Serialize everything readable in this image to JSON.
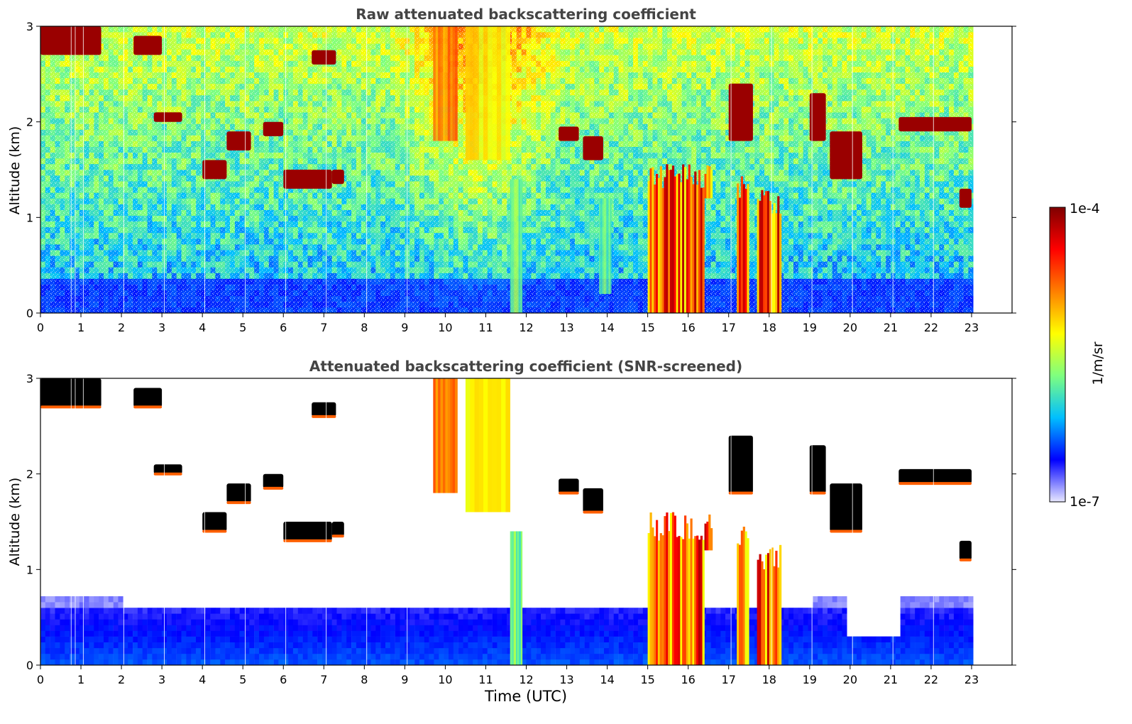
{
  "chart_data": [
    {
      "type": "heatmap",
      "title": "Raw attenuated backscattering coefficient",
      "xlabel": "",
      "ylabel": "Altitude (km)",
      "xlim": [
        0,
        24
      ],
      "ylim": [
        0,
        3
      ],
      "xticks": [
        "0",
        "1",
        "2",
        "3",
        "4",
        "5",
        "6",
        "7",
        "8",
        "9",
        "10",
        "11",
        "12",
        "13",
        "14",
        "15",
        "16",
        "17",
        "18",
        "19",
        "20",
        "21",
        "22",
        "23"
      ],
      "yticks": [
        "0",
        "1",
        "2",
        "3"
      ],
      "data_end_hour": 23,
      "screened": false,
      "cloud_layers": [
        {
          "t0": 0.0,
          "t1": 1.5,
          "z0": 2.7,
          "z1": 3.0
        },
        {
          "t0": 2.3,
          "t1": 3.0,
          "z0": 2.7,
          "z1": 2.9
        },
        {
          "t0": 6.7,
          "t1": 7.3,
          "z0": 2.6,
          "z1": 2.75
        },
        {
          "t0": 2.8,
          "t1": 3.5,
          "z0": 2.0,
          "z1": 2.1
        },
        {
          "t0": 4.0,
          "t1": 4.6,
          "z0": 1.4,
          "z1": 1.6
        },
        {
          "t0": 4.6,
          "t1": 5.2,
          "z0": 1.7,
          "z1": 1.9
        },
        {
          "t0": 5.5,
          "t1": 6.0,
          "z0": 1.85,
          "z1": 2.0
        },
        {
          "t0": 6.0,
          "t1": 7.2,
          "z0": 1.3,
          "z1": 1.5
        },
        {
          "t0": 7.2,
          "t1": 7.5,
          "z0": 1.35,
          "z1": 1.5
        },
        {
          "t0": 12.8,
          "t1": 13.3,
          "z0": 1.8,
          "z1": 1.95
        },
        {
          "t0": 13.4,
          "t1": 13.9,
          "z0": 1.6,
          "z1": 1.85
        },
        {
          "t0": 17.0,
          "t1": 17.6,
          "z0": 1.8,
          "z1": 2.4
        },
        {
          "t0": 19.0,
          "t1": 19.4,
          "z0": 1.8,
          "z1": 2.3
        },
        {
          "t0": 19.5,
          "t1": 20.3,
          "z0": 1.4,
          "z1": 1.9
        },
        {
          "t0": 21.2,
          "t1": 23.0,
          "z0": 1.9,
          "z1": 2.05
        },
        {
          "t0": 22.7,
          "t1": 23.0,
          "z0": 1.1,
          "z1": 1.3
        }
      ],
      "precip_columns": [
        {
          "t0": 15.0,
          "t1": 16.4,
          "z0": 0.0,
          "z1": 1.6
        },
        {
          "t0": 16.4,
          "t1": 16.6,
          "z0": 1.2,
          "z1": 1.6
        },
        {
          "t0": 17.7,
          "t1": 18.3,
          "z0": 0.0,
          "z1": 1.3
        },
        {
          "t0": 17.2,
          "t1": 17.5,
          "z0": 0.0,
          "z1": 1.5
        }
      ],
      "aerosol_plumes": [
        {
          "t0": 9.7,
          "t1": 10.3,
          "z0": 1.8,
          "z1": 3.0,
          "level": 0.72
        },
        {
          "t0": 10.5,
          "t1": 11.6,
          "z0": 1.6,
          "z1": 3.0,
          "level": 0.58
        },
        {
          "t0": 11.6,
          "t1": 11.9,
          "z0": 0.0,
          "z1": 1.4,
          "level": 0.42
        },
        {
          "t0": 13.8,
          "t1": 14.1,
          "z0": 0.2,
          "z1": 1.2,
          "level": 0.4
        }
      ]
    },
    {
      "type": "heatmap",
      "title": "Attenuated backscattering coefficient (SNR-screened)",
      "xlabel": "Time (UTC)",
      "ylabel": "Altitude (km)",
      "xlim": [
        0,
        24
      ],
      "ylim": [
        0,
        3
      ],
      "xticks": [
        "0",
        "1",
        "2",
        "3",
        "4",
        "5",
        "6",
        "7",
        "8",
        "9",
        "10",
        "11",
        "12",
        "13",
        "14",
        "15",
        "16",
        "17",
        "18",
        "19",
        "20",
        "21",
        "22",
        "23"
      ],
      "yticks": [
        "0",
        "1",
        "2",
        "3"
      ],
      "data_end_hour": 23,
      "screened": true
    }
  ],
  "colorbar": {
    "label": "1/m/sr",
    "max_label": "1e-4",
    "min_label": "1e-7"
  },
  "colors": {
    "cmap_stops": [
      "#e8e8ff",
      "#0000ff",
      "#00bfff",
      "#7fff7f",
      "#ffff00",
      "#ff7f00",
      "#ff0000",
      "#7f0000"
    ]
  }
}
